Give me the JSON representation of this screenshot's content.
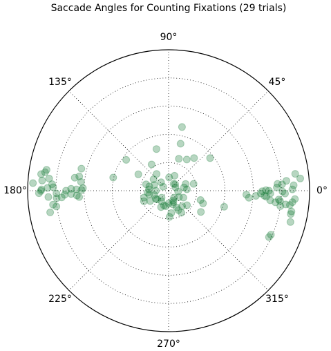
{
  "chart_data": {
    "type": "scatter",
    "projection": "polar",
    "title": "Saccade Angles for Counting Fixations (29 trials)",
    "angle_ticks": [
      "0°",
      "45°",
      "90°",
      "135°",
      "180°",
      "225°",
      "270°",
      "315°"
    ],
    "angle_tick_values_deg": [
      0,
      45,
      90,
      135,
      180,
      225,
      270,
      315
    ],
    "radial_gridlines": [
      1,
      2,
      3,
      4
    ],
    "rlim": [
      0,
      5
    ],
    "radial_tick_labels_shown": false,
    "grid": true,
    "marker_color": "#117733",
    "marker_alpha": 0.3,
    "series": [
      {
        "points_theta_deg_r": [
          [
            78.1,
            2.31
          ],
          [
            75.7,
            1.72
          ],
          [
            59.7,
            1.28
          ],
          [
            52.1,
            1.47
          ],
          [
            38.2,
            1.87
          ],
          [
            106.3,
            1.54
          ],
          [
            122.9,
            1.11
          ],
          [
            144.0,
            1.86
          ],
          [
            151.6,
            1.22
          ],
          [
            72.2,
            1.19
          ],
          [
            166.7,
            2.02
          ],
          [
            165.8,
            3.19
          ],
          [
            170.9,
            3.21
          ],
          [
            172.1,
            3.36
          ],
          [
            174.3,
            3.12
          ],
          [
            178.3,
            3.04
          ],
          [
            179.6,
            3.09
          ],
          [
            179.2,
            3.27
          ],
          [
            178.9,
            3.46
          ],
          [
            180.0,
            3.64
          ],
          [
            181.4,
            3.98
          ],
          [
            183.8,
            3.98
          ],
          [
            183.6,
            3.8
          ],
          [
            182.2,
            3.69
          ],
          [
            181.9,
            3.46
          ],
          [
            183.0,
            3.26
          ],
          [
            184.0,
            3.18
          ],
          [
            186.9,
            4.13
          ],
          [
            188.0,
            4.02
          ],
          [
            190.4,
            4.27
          ],
          [
            176.8,
            4.14
          ],
          [
            174.2,
            4.26
          ],
          [
            175.4,
            4.5
          ],
          [
            172.6,
            4.56
          ],
          [
            171.5,
            4.43
          ],
          [
            170.3,
            4.39
          ],
          [
            178.3,
            4.1
          ],
          [
            178.7,
            4.3
          ],
          [
            179.4,
            4.51
          ],
          [
            181.1,
            4.6
          ],
          [
            176.8,
            4.82
          ],
          [
            183.0,
            4.27
          ],
          [
            180.1,
            4.53
          ],
          [
            0.6,
            4.39
          ],
          [
            2.5,
            4.44
          ],
          [
            5.3,
            4.69
          ],
          [
            7.6,
            4.53
          ],
          [
            4.8,
            4.19
          ],
          [
            3.2,
            4.03
          ],
          [
            1.7,
            3.84
          ],
          [
            0.0,
            3.56
          ],
          [
            0.3,
            3.45
          ],
          [
            359.7,
            3.32
          ],
          [
            358.3,
            3.27
          ],
          [
            356.6,
            3.1
          ],
          [
            357.0,
            3.4
          ],
          [
            355.0,
            2.86
          ],
          [
            357.1,
            2.76
          ],
          [
            353.3,
            4.18
          ],
          [
            352.1,
            4.0
          ],
          [
            354.6,
            3.62
          ],
          [
            353.8,
            3.81
          ],
          [
            356.2,
            4.49
          ],
          [
            354.7,
            4.41
          ],
          [
            353.3,
            4.33
          ],
          [
            354.7,
            3.97
          ],
          [
            355.4,
            3.92
          ],
          [
            356.5,
            3.47
          ],
          [
            358.4,
            3.61
          ],
          [
            359.6,
            4.04
          ],
          [
            358.6,
            4.13
          ],
          [
            3.6,
            3.87
          ],
          [
            350.4,
            4.42
          ],
          [
            349.2,
            4.41
          ],
          [
            345.6,
            4.46
          ],
          [
            336.7,
            3.95
          ],
          [
            335.2,
            3.92
          ],
          [
            343.9,
            2.05
          ],
          [
            343.7,
            1.18
          ],
          [
            339.8,
            1.3
          ],
          [
            326.7,
            1.37
          ],
          [
            300.1,
            0.9
          ],
          [
            296.6,
            0.77
          ],
          [
            293.9,
            0.38
          ],
          [
            311.2,
            0.73
          ],
          [
            321.7,
            0.83
          ],
          [
            295.5,
            0.66
          ],
          [
            276.7,
            0.8
          ],
          [
            272.1,
            0.93
          ],
          [
            287.3,
            0.51
          ],
          [
            308.0,
            0.31
          ],
          [
            335.0,
            0.58
          ],
          [
            355.0,
            0.34
          ],
          [
            270.0,
            0.45
          ],
          [
            245.2,
            0.64
          ],
          [
            217.2,
            0.51
          ],
          [
            203.1,
            0.95
          ],
          [
            209.3,
            0.75
          ],
          [
            190.9,
            0.7
          ],
          [
            176.1,
            0.7
          ],
          [
            164.0,
            0.83
          ],
          [
            142.8,
            0.67
          ],
          [
            158.2,
            0.55
          ],
          [
            180.0,
            0.45
          ],
          [
            196.7,
            0.53
          ],
          [
            225.0,
            0.35
          ],
          [
            259.8,
            0.56
          ],
          [
            125.8,
            0.73
          ],
          [
            131.8,
            0.4
          ],
          [
            87.9,
            0.47
          ],
          [
            68.2,
            0.57
          ],
          [
            53.8,
            0.3
          ],
          [
            143.5,
            0.24
          ],
          [
            26.6,
            0.27
          ],
          [
            21.8,
            0.65
          ],
          [
            15.3,
            0.92
          ],
          [
            4.3,
            0.65
          ],
          [
            12.1,
            0.56
          ],
          [
            167.5,
            0.7
          ],
          [
            185.3,
            0.75
          ],
          [
            212.0,
            0.54
          ],
          [
            252.6,
            0.55
          ],
          [
            195.7,
            0.91
          ],
          [
            235.3,
            0.45
          ],
          [
            292.6,
            0.44
          ],
          [
            328.0,
            0.43
          ],
          [
            45.0,
            0.33
          ]
        ]
      }
    ]
  }
}
